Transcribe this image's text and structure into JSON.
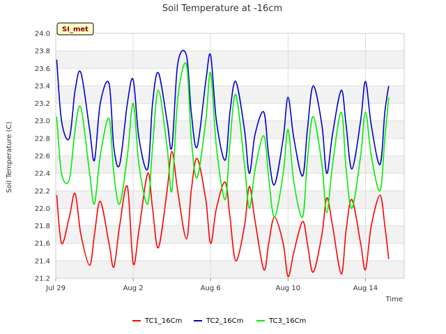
{
  "chart_data": {
    "type": "line",
    "title": "Soil Temperature at -16cm",
    "xlabel": "Time",
    "ylabel": "Soil Temperature (C)",
    "site_badge": "SI_met",
    "x_unit": "days since Jul 29",
    "xlim": [
      0,
      18
    ],
    "ylim": [
      21.2,
      24.0
    ],
    "y_ticks": [
      21.2,
      21.4,
      21.6,
      21.8,
      22.0,
      22.2,
      22.4,
      22.6,
      22.8,
      23.0,
      23.2,
      23.4,
      23.6,
      23.8,
      24.0
    ],
    "x_ticks": [
      {
        "value": 0,
        "label": "Jul 29"
      },
      {
        "value": 4,
        "label": "Aug 2"
      },
      {
        "value": 8,
        "label": "Aug 6"
      },
      {
        "value": 12,
        "label": "Aug 10"
      },
      {
        "value": 16,
        "label": "Aug 14"
      }
    ],
    "grid": true,
    "legend_position": "bottom",
    "x": [
      0.05,
      0.3,
      0.7,
      1.0,
      1.3,
      1.75,
      2.0,
      2.3,
      2.75,
      3.0,
      3.3,
      3.7,
      4.0,
      4.3,
      4.75,
      5.0,
      5.3,
      5.75,
      6.0,
      6.3,
      6.75,
      7.0,
      7.3,
      7.75,
      8.0,
      8.3,
      8.75,
      9.0,
      9.3,
      9.75,
      10.0,
      10.3,
      10.75,
      11.0,
      11.3,
      11.75,
      12.0,
      12.3,
      12.75,
      13.0,
      13.3,
      13.75,
      14.0,
      14.3,
      14.75,
      15.0,
      15.3,
      15.75,
      16.0,
      16.3,
      16.75,
      17.0,
      17.2
    ],
    "series": [
      {
        "name": "TC1_16Cm",
        "color": "#ff0000",
        "values": [
          22.15,
          21.6,
          21.9,
          22.17,
          21.7,
          21.35,
          21.7,
          22.08,
          21.6,
          21.33,
          21.8,
          22.25,
          21.37,
          21.75,
          22.4,
          22.0,
          21.55,
          22.2,
          22.65,
          22.2,
          21.65,
          22.2,
          22.57,
          22.1,
          21.6,
          22.0,
          22.3,
          21.9,
          21.4,
          21.8,
          22.25,
          21.85,
          21.3,
          21.6,
          21.9,
          21.6,
          21.22,
          21.5,
          21.85,
          21.6,
          21.27,
          21.7,
          22.12,
          21.8,
          21.25,
          21.75,
          22.1,
          21.6,
          21.3,
          21.8,
          22.15,
          21.8,
          21.42
        ]
      },
      {
        "name": "TC2_16Cm",
        "color": "#0000cc",
        "values": [
          23.7,
          23.0,
          22.8,
          23.35,
          23.55,
          22.9,
          22.55,
          23.2,
          23.43,
          22.7,
          22.5,
          23.2,
          23.47,
          22.8,
          22.45,
          23.2,
          23.55,
          23.0,
          22.7,
          23.65,
          23.75,
          23.1,
          22.7,
          23.45,
          23.75,
          23.0,
          22.55,
          23.1,
          23.45,
          22.9,
          22.4,
          22.85,
          23.1,
          22.6,
          22.27,
          22.8,
          23.27,
          22.8,
          22.37,
          22.9,
          23.4,
          22.95,
          22.4,
          22.85,
          23.35,
          22.95,
          22.45,
          23.0,
          23.45,
          22.95,
          22.5,
          23.1,
          23.4
        ]
      },
      {
        "name": "TC3_16Cm",
        "color": "#00ee00",
        "values": [
          23.05,
          22.4,
          22.33,
          22.9,
          23.15,
          22.4,
          22.05,
          22.6,
          23.03,
          22.4,
          22.05,
          22.6,
          23.2,
          22.5,
          22.05,
          22.7,
          23.35,
          22.7,
          22.2,
          23.25,
          23.65,
          22.8,
          22.35,
          23.0,
          23.55,
          22.7,
          22.1,
          22.75,
          23.3,
          22.5,
          22.0,
          22.45,
          22.83,
          22.35,
          21.9,
          22.4,
          22.9,
          22.3,
          21.9,
          22.55,
          23.05,
          22.5,
          21.95,
          22.5,
          23.1,
          22.45,
          22.0,
          22.6,
          23.1,
          22.6,
          22.2,
          22.8,
          23.27
        ]
      }
    ]
  }
}
